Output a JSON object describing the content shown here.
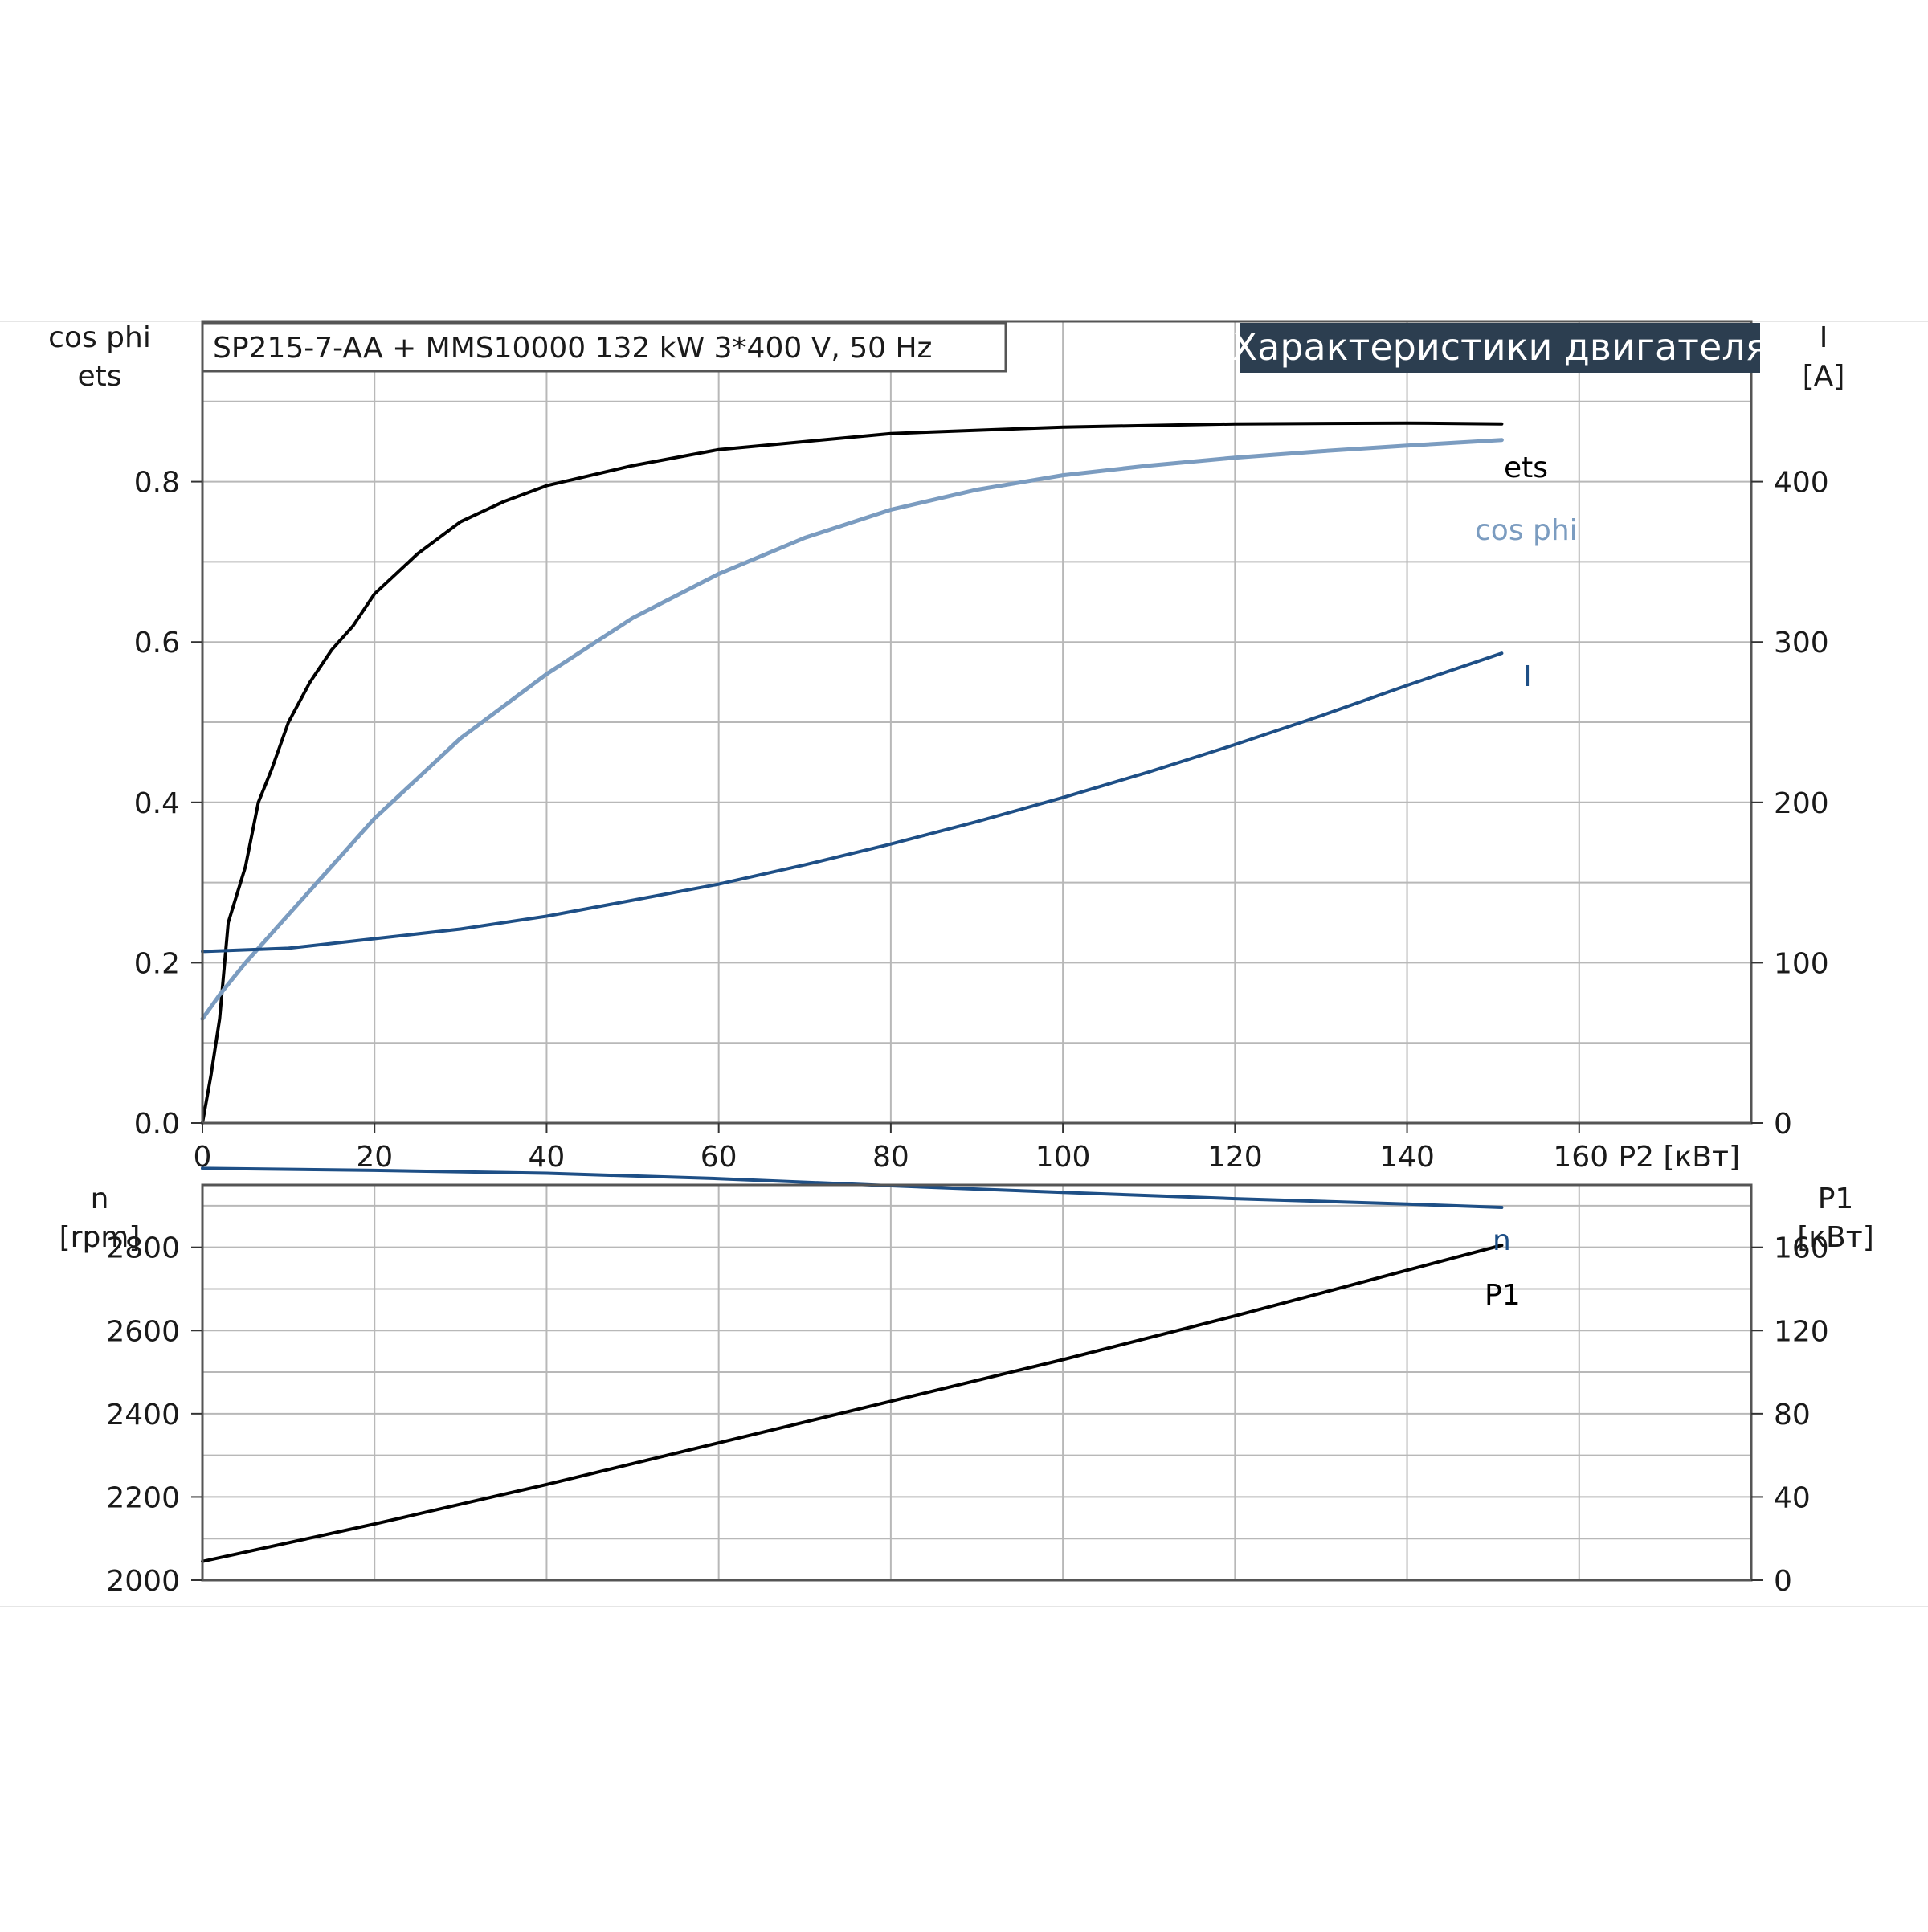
{
  "header": {
    "model_label": "SP215-7-AA + MMS10000   132 kW   3*400 V, 50 Hz",
    "badge": "Характеристики двигателя"
  },
  "colors": {
    "ets": "#000000",
    "cos_phi": "#7b9cc0",
    "current": "#1e4f86",
    "speed": "#1e4f86",
    "p1": "#000000",
    "badge_bg": "#2c3e50",
    "grid": "#b8b8b8"
  },
  "chart_data": [
    {
      "type": "line",
      "panel": "top",
      "x": {
        "label": "P2 [кВт]",
        "ticks": [
          "0",
          "20",
          "40",
          "60",
          "80",
          "100",
          "120",
          "140",
          "160"
        ],
        "range": [
          0,
          180
        ]
      },
      "y_left": {
        "label_lines": [
          "cos phi",
          "ets"
        ],
        "ticks": [
          "0.0",
          "0.2",
          "0.4",
          "0.6",
          "0.8"
        ],
        "range": [
          0,
          1.0
        ]
      },
      "y_right": {
        "label_lines": [
          "I",
          "[A]"
        ],
        "ticks": [
          "0",
          "100",
          "200",
          "300",
          "400"
        ],
        "range": [
          0,
          500
        ]
      },
      "grid": true,
      "series": [
        {
          "name": "ets",
          "axis": "left",
          "color_key": "ets",
          "points": [
            [
              0,
              0
            ],
            [
              1,
              0.06
            ],
            [
              2,
              0.13
            ],
            [
              3,
              0.25
            ],
            [
              5,
              0.32
            ],
            [
              6.5,
              0.4
            ],
            [
              8,
              0.44
            ],
            [
              10,
              0.5
            ],
            [
              12.5,
              0.55
            ],
            [
              15,
              0.59
            ],
            [
              17.5,
              0.62
            ],
            [
              20,
              0.66
            ],
            [
              25,
              0.71
            ],
            [
              30,
              0.75
            ],
            [
              35,
              0.775
            ],
            [
              40,
              0.795
            ],
            [
              50,
              0.82
            ],
            [
              60,
              0.84
            ],
            [
              70,
              0.85
            ],
            [
              80,
              0.86
            ],
            [
              100,
              0.868
            ],
            [
              120,
              0.872
            ],
            [
              140,
              0.873
            ],
            [
              151,
              0.872
            ]
          ]
        },
        {
          "name": "cos phi",
          "axis": "left",
          "color_key": "cos_phi",
          "points": [
            [
              0,
              0.13
            ],
            [
              2,
              0.16
            ],
            [
              5,
              0.2
            ],
            [
              10,
              0.26
            ],
            [
              15,
              0.32
            ],
            [
              20,
              0.38
            ],
            [
              25,
              0.43
            ],
            [
              30,
              0.48
            ],
            [
              40,
              0.56
            ],
            [
              50,
              0.63
            ],
            [
              60,
              0.685
            ],
            [
              70,
              0.73
            ],
            [
              80,
              0.765
            ],
            [
              90,
              0.79
            ],
            [
              100,
              0.808
            ],
            [
              110,
              0.82
            ],
            [
              120,
              0.83
            ],
            [
              130,
              0.838
            ],
            [
              140,
              0.845
            ],
            [
              151,
              0.852
            ]
          ]
        },
        {
          "name": "I",
          "axis": "right",
          "color_key": "current",
          "points": [
            [
              0,
              107
            ],
            [
              10,
              109
            ],
            [
              20,
              115
            ],
            [
              30,
              121
            ],
            [
              40,
              129
            ],
            [
              50,
              139
            ],
            [
              60,
              149
            ],
            [
              70,
              161
            ],
            [
              80,
              174
            ],
            [
              90,
              188
            ],
            [
              100,
              203
            ],
            [
              110,
              219
            ],
            [
              120,
              236
            ],
            [
              130,
              254
            ],
            [
              140,
              273
            ],
            [
              151,
              293
            ]
          ]
        }
      ]
    },
    {
      "type": "line",
      "panel": "bottom",
      "x": {
        "range": [
          0,
          180
        ]
      },
      "y_left": {
        "label_lines": [
          "n",
          "[rpm]"
        ],
        "ticks": [
          "2000",
          "2200",
          "2400",
          "2600",
          "2800"
        ],
        "range": [
          2000,
          2950
        ]
      },
      "y_right": {
        "label_lines": [
          "P1",
          "[кВт]"
        ],
        "ticks": [
          "0",
          "40",
          "80",
          "120",
          "160"
        ],
        "range": [
          0,
          190
        ]
      },
      "grid": true,
      "series": [
        {
          "name": "n",
          "axis": "left",
          "color_key": "speed",
          "points": [
            [
              0,
              2990
            ],
            [
              20,
              2985
            ],
            [
              40,
              2978
            ],
            [
              60,
              2965
            ],
            [
              80,
              2948
            ],
            [
              100,
              2932
            ],
            [
              120,
              2917
            ],
            [
              140,
              2904
            ],
            [
              151,
              2896
            ]
          ]
        },
        {
          "name": "P1",
          "axis": "right",
          "color_key": "p1",
          "points": [
            [
              0,
              9
            ],
            [
              20,
              27
            ],
            [
              40,
              46
            ],
            [
              60,
              66
            ],
            [
              80,
              86
            ],
            [
              100,
              106
            ],
            [
              120,
              127
            ],
            [
              140,
              149
            ],
            [
              151,
              161
            ]
          ]
        }
      ]
    }
  ]
}
